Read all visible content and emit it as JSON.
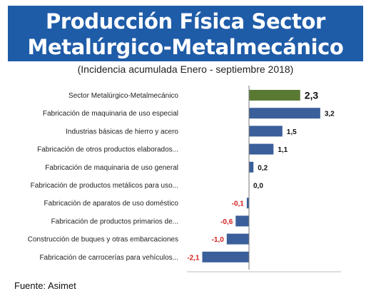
{
  "header": {
    "title_line1": "Producción Física Sector",
    "title_line2": "Metalúrgico-Metalmecánico",
    "subtitle": "(Incidencia acumulada Enero - septiembre 2018)"
  },
  "footer": {
    "source": "Fuente: Asimet"
  },
  "colors": {
    "title_bg": "#1f5ca8",
    "bar_main": "#5a7a34",
    "bar_series": "#3a5f9a",
    "negative_label": "#d42020"
  },
  "chart_data": {
    "type": "bar",
    "orientation": "horizontal",
    "title": "",
    "xlabel": "",
    "ylabel": "",
    "categories": [
      "Sector Metalúrgico-Metalmecánico",
      "Fabricación de maquinaria de uso especial",
      "Industrias básicas de hierro y acero",
      "Fabricación de otros productos elaborados...",
      "Fabricación de maquinaria de uso general",
      "Fabricación de productos metálicos para uso...",
      "Fabricación de aparatos de uso doméstico",
      "Fabricación de productos primarios de...",
      "Construcción de buques y otras embarcaciones",
      "Fabricación de carrocerías para vehículos..."
    ],
    "values": [
      2.3,
      3.2,
      1.5,
      1.1,
      0.2,
      0.0,
      -0.1,
      -0.6,
      -1.0,
      -2.1
    ],
    "value_labels": [
      "2,3",
      "3,2",
      "1,5",
      "1,1",
      "0,2",
      "0,0",
      "-0,1",
      "-0,6",
      "-1,0",
      "-2,1"
    ],
    "highlight_index": 0,
    "xlim": [
      -2.5,
      3.6
    ],
    "grid": false,
    "legend": "none"
  }
}
